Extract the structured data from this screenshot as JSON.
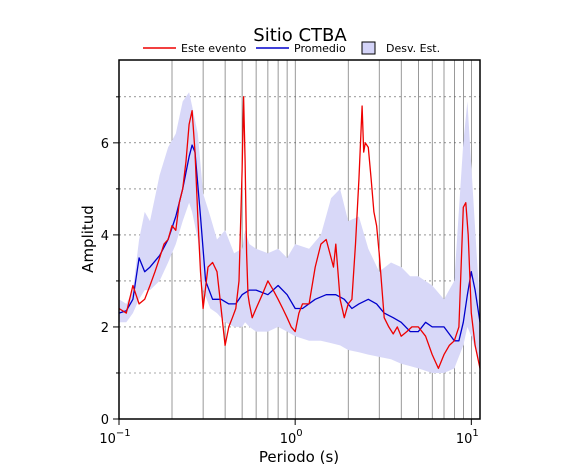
{
  "chart_data": {
    "type": "line",
    "title": "Sitio CTBA",
    "xlabel": "Periodo (s)",
    "ylabel": "Amplitud",
    "x_scale": "log",
    "xlim": [
      0.1,
      11.2
    ],
    "ylim": [
      0,
      7.8
    ],
    "x_ticks": [
      {
        "value": 0.1,
        "base": "10",
        "exp": "−1"
      },
      {
        "value": 1,
        "base": "10",
        "exp": "0"
      },
      {
        "value": 10,
        "base": "10",
        "exp": "1"
      }
    ],
    "y_ticks": [
      0,
      2,
      4,
      6
    ],
    "grid": "x-log-minor, y-dashed",
    "legend_position": "top",
    "legend": [
      {
        "label": "Este evento",
        "kind": "line",
        "color": "#ee0000"
      },
      {
        "label": "Promedio",
        "kind": "line",
        "color": "#0000cc"
      },
      {
        "label": "Desv. Est.",
        "kind": "band",
        "color": "#d4d4f8"
      }
    ],
    "band": {
      "name": "Desv. Est.",
      "color": "#d8d8f8",
      "x": [
        0.1,
        0.11,
        0.12,
        0.13,
        0.14,
        0.15,
        0.17,
        0.19,
        0.21,
        0.23,
        0.25,
        0.26,
        0.28,
        0.3,
        0.33,
        0.36,
        0.4,
        0.45,
        0.5,
        0.52,
        0.55,
        0.6,
        0.7,
        0.8,
        0.9,
        1.0,
        1.2,
        1.4,
        1.6,
        1.8,
        2.0,
        2.3,
        2.6,
        3.0,
        3.5,
        4.0,
        4.5,
        5.0,
        6.0,
        7.0,
        8.0,
        9.0,
        9.5,
        10.0,
        11.2
      ],
      "upper": [
        2.6,
        2.5,
        2.8,
        3.9,
        4.5,
        4.3,
        5.3,
        5.9,
        6.2,
        6.9,
        7.1,
        6.8,
        6.2,
        4.9,
        4.4,
        3.9,
        4.1,
        3.6,
        3.7,
        4.1,
        3.8,
        3.7,
        3.6,
        3.7,
        3.5,
        3.8,
        3.7,
        4.0,
        4.8,
        5.0,
        4.3,
        4.4,
        3.7,
        3.2,
        3.4,
        3.3,
        3.1,
        3.1,
        2.9,
        2.6,
        3.0,
        6.0,
        6.9,
        5.5,
        2.4
      ],
      "lower": [
        2.1,
        2.1,
        2.3,
        2.6,
        2.8,
        2.8,
        3.0,
        3.4,
        3.8,
        4.3,
        4.7,
        4.5,
        3.9,
        2.8,
        2.4,
        2.3,
        2.1,
        2.0,
        2.0,
        2.1,
        2.0,
        1.9,
        1.9,
        2.0,
        1.9,
        1.8,
        1.7,
        1.7,
        1.65,
        1.6,
        1.5,
        1.45,
        1.4,
        1.35,
        1.3,
        1.2,
        1.15,
        1.1,
        1.0,
        1.0,
        1.1,
        1.6,
        2.0,
        1.8,
        1.2
      ]
    },
    "series": [
      {
        "name": "Promedio",
        "color": "#0000cc",
        "x": [
          0.1,
          0.11,
          0.12,
          0.13,
          0.14,
          0.15,
          0.17,
          0.19,
          0.21,
          0.23,
          0.25,
          0.26,
          0.27,
          0.29,
          0.31,
          0.34,
          0.38,
          0.42,
          0.46,
          0.5,
          0.55,
          0.6,
          0.7,
          0.8,
          0.9,
          1.0,
          1.1,
          1.3,
          1.5,
          1.7,
          1.9,
          2.1,
          2.3,
          2.6,
          2.9,
          3.2,
          3.6,
          4.0,
          4.5,
          5.0,
          5.5,
          6.0,
          7.0,
          8.0,
          8.5,
          9.0,
          9.5,
          10.0,
          10.5,
          11.2
        ],
        "y": [
          2.3,
          2.35,
          2.6,
          3.5,
          3.2,
          3.3,
          3.55,
          3.9,
          4.4,
          5.0,
          5.7,
          5.95,
          5.8,
          4.4,
          3.0,
          2.6,
          2.6,
          2.5,
          2.5,
          2.7,
          2.8,
          2.8,
          2.7,
          2.9,
          2.7,
          2.4,
          2.4,
          2.6,
          2.7,
          2.7,
          2.6,
          2.4,
          2.5,
          2.6,
          2.5,
          2.3,
          2.2,
          2.1,
          1.9,
          1.9,
          2.1,
          2.0,
          2.0,
          1.7,
          1.7,
          2.1,
          2.7,
          3.2,
          2.8,
          2.1
        ]
      },
      {
        "name": "Este evento",
        "color": "#ee0000",
        "x": [
          0.1,
          0.11,
          0.12,
          0.13,
          0.14,
          0.15,
          0.16,
          0.17,
          0.18,
          0.19,
          0.2,
          0.21,
          0.22,
          0.23,
          0.24,
          0.25,
          0.26,
          0.27,
          0.28,
          0.29,
          0.3,
          0.32,
          0.34,
          0.36,
          0.38,
          0.4,
          0.42,
          0.44,
          0.46,
          0.48,
          0.5,
          0.51,
          0.52,
          0.53,
          0.54,
          0.55,
          0.57,
          0.6,
          0.65,
          0.7,
          0.75,
          0.8,
          0.85,
          0.9,
          0.95,
          1.0,
          1.05,
          1.1,
          1.2,
          1.3,
          1.4,
          1.5,
          1.6,
          1.65,
          1.7,
          1.8,
          1.9,
          2.0,
          2.1,
          2.2,
          2.3,
          2.4,
          2.45,
          2.5,
          2.6,
          2.7,
          2.8,
          2.9,
          3.0,
          3.2,
          3.4,
          3.6,
          3.8,
          4.0,
          4.3,
          4.6,
          5.0,
          5.5,
          6.0,
          6.5,
          7.0,
          7.5,
          8.0,
          8.5,
          9.0,
          9.3,
          9.6,
          10.0,
          10.5,
          11.2
        ],
        "y": [
          2.4,
          2.3,
          2.9,
          2.5,
          2.6,
          2.9,
          3.2,
          3.5,
          3.8,
          3.9,
          4.2,
          4.1,
          4.7,
          5.0,
          5.6,
          6.4,
          6.7,
          5.8,
          4.4,
          3.2,
          2.4,
          3.3,
          3.4,
          3.2,
          2.4,
          1.6,
          2.0,
          2.2,
          2.4,
          3.0,
          5.4,
          7.0,
          5.6,
          3.6,
          2.7,
          2.5,
          2.2,
          2.4,
          2.7,
          3.0,
          2.8,
          2.6,
          2.4,
          2.2,
          2.0,
          1.9,
          2.3,
          2.5,
          2.5,
          3.3,
          3.8,
          3.9,
          3.5,
          3.3,
          3.8,
          2.6,
          2.2,
          2.5,
          2.6,
          3.8,
          5.2,
          6.8,
          5.8,
          6.0,
          5.9,
          5.2,
          4.5,
          4.2,
          3.6,
          2.2,
          2.0,
          1.85,
          2.0,
          1.8,
          1.9,
          2.0,
          2.0,
          1.8,
          1.4,
          1.1,
          1.4,
          1.6,
          1.7,
          2.0,
          4.6,
          4.7,
          4.0,
          2.3,
          1.6,
          1.1
        ]
      }
    ]
  }
}
